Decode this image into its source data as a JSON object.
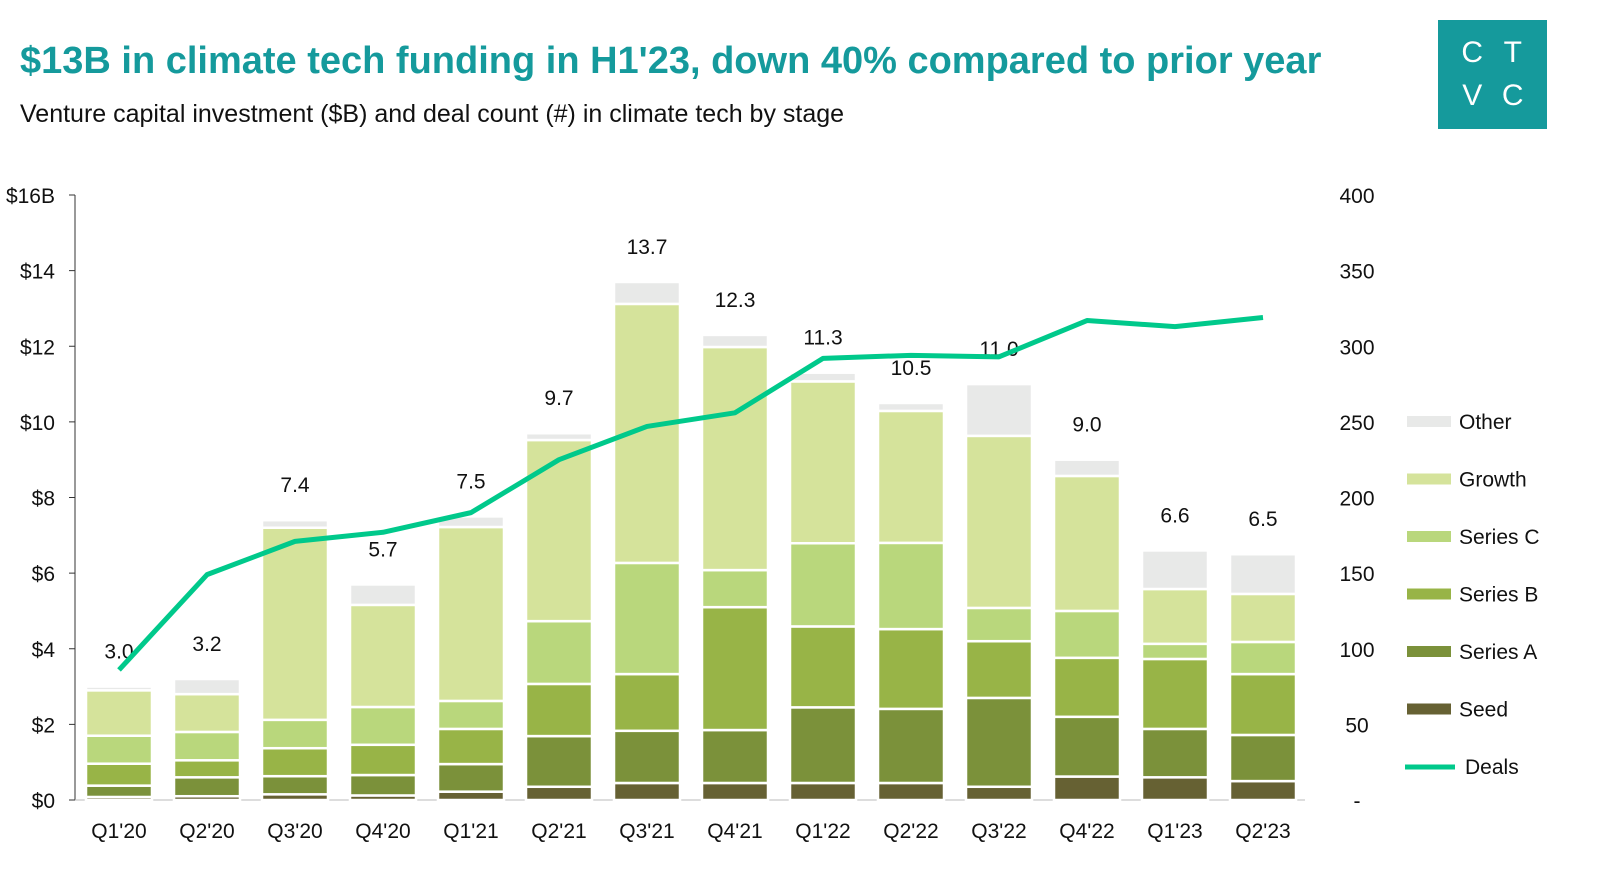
{
  "header": {
    "title": "$13B in climate tech funding in H1'23, down 40% compared to prior year",
    "subtitle": "Venture capital investment ($B) and deal count (#) in climate tech by stage",
    "logo_letters": [
      "C",
      "T",
      "V",
      "C"
    ]
  },
  "colors": {
    "title": "#159a9c",
    "Other": "#e8e9e8",
    "Growth": "#d5e39b",
    "Series C": "#b9d77c",
    "Series B": "#98b447",
    "Series A": "#7b913a",
    "Seed": "#666133",
    "Deals": "#00c98b"
  },
  "chart_data": {
    "type": "bar",
    "stacked": true,
    "categories": [
      "Q1'20",
      "Q2'20",
      "Q3'20",
      "Q4'20",
      "Q1'21",
      "Q2'21",
      "Q3'21",
      "Q4'21",
      "Q1'22",
      "Q2'22",
      "Q3'22",
      "Q4'22",
      "Q1'23",
      "Q2'23"
    ],
    "left_axis": {
      "ylim": [
        0,
        16
      ],
      "ticks": [
        "$0",
        "$2",
        "$4",
        "$6",
        "$8",
        "$10",
        "$12",
        "$14",
        "$16B"
      ]
    },
    "right_axis": {
      "ylim": [
        0,
        400
      ],
      "ticks": [
        "-",
        "50",
        "100",
        "150",
        "200",
        "250",
        "300",
        "350",
        "400"
      ]
    },
    "totals": [
      "3.0",
      "3.2",
      "7.4",
      "5.7",
      "7.5",
      "9.7",
      "13.7",
      "12.3",
      "11.3",
      "10.5",
      "11.0",
      "9.0",
      "6.6",
      "6.5"
    ],
    "series": [
      {
        "name": "Seed",
        "values": [
          0.08,
          0.1,
          0.15,
          0.12,
          0.22,
          0.35,
          0.45,
          0.45,
          0.45,
          0.45,
          0.35,
          0.62,
          0.6,
          0.5
        ]
      },
      {
        "name": "Series A",
        "values": [
          0.3,
          0.5,
          0.48,
          0.54,
          0.73,
          1.34,
          1.38,
          1.4,
          2.0,
          1.96,
          2.35,
          1.58,
          1.28,
          1.22
        ]
      },
      {
        "name": "Series B",
        "values": [
          0.58,
          0.45,
          0.74,
          0.8,
          0.93,
          1.38,
          1.5,
          3.25,
          2.14,
          2.11,
          1.5,
          1.56,
          1.85,
          1.61
        ]
      },
      {
        "name": "Series C",
        "values": [
          0.74,
          0.75,
          0.75,
          1.0,
          0.74,
          1.66,
          2.94,
          0.98,
          2.2,
          2.28,
          0.88,
          1.24,
          0.4,
          0.85
        ]
      },
      {
        "name": "Growth",
        "values": [
          1.2,
          1.0,
          5.08,
          2.7,
          4.6,
          4.79,
          6.85,
          5.9,
          4.28,
          3.49,
          4.55,
          3.57,
          1.45,
          1.27
        ]
      },
      {
        "name": "Other",
        "values": [
          0.1,
          0.4,
          0.2,
          0.54,
          0.28,
          0.18,
          0.58,
          0.32,
          0.23,
          0.21,
          1.37,
          0.43,
          1.02,
          1.05
        ]
      }
    ],
    "line": {
      "name": "Deals",
      "axis": "right",
      "values": [
        86,
        149,
        171,
        177,
        190,
        225,
        247,
        256,
        292,
        294,
        293,
        317,
        313,
        319
      ]
    },
    "legend": {
      "placement": "right",
      "entries": [
        "Other",
        "Growth",
        "Series C",
        "Series B",
        "Series A",
        "Seed",
        "Deals"
      ]
    },
    "grid": false
  }
}
